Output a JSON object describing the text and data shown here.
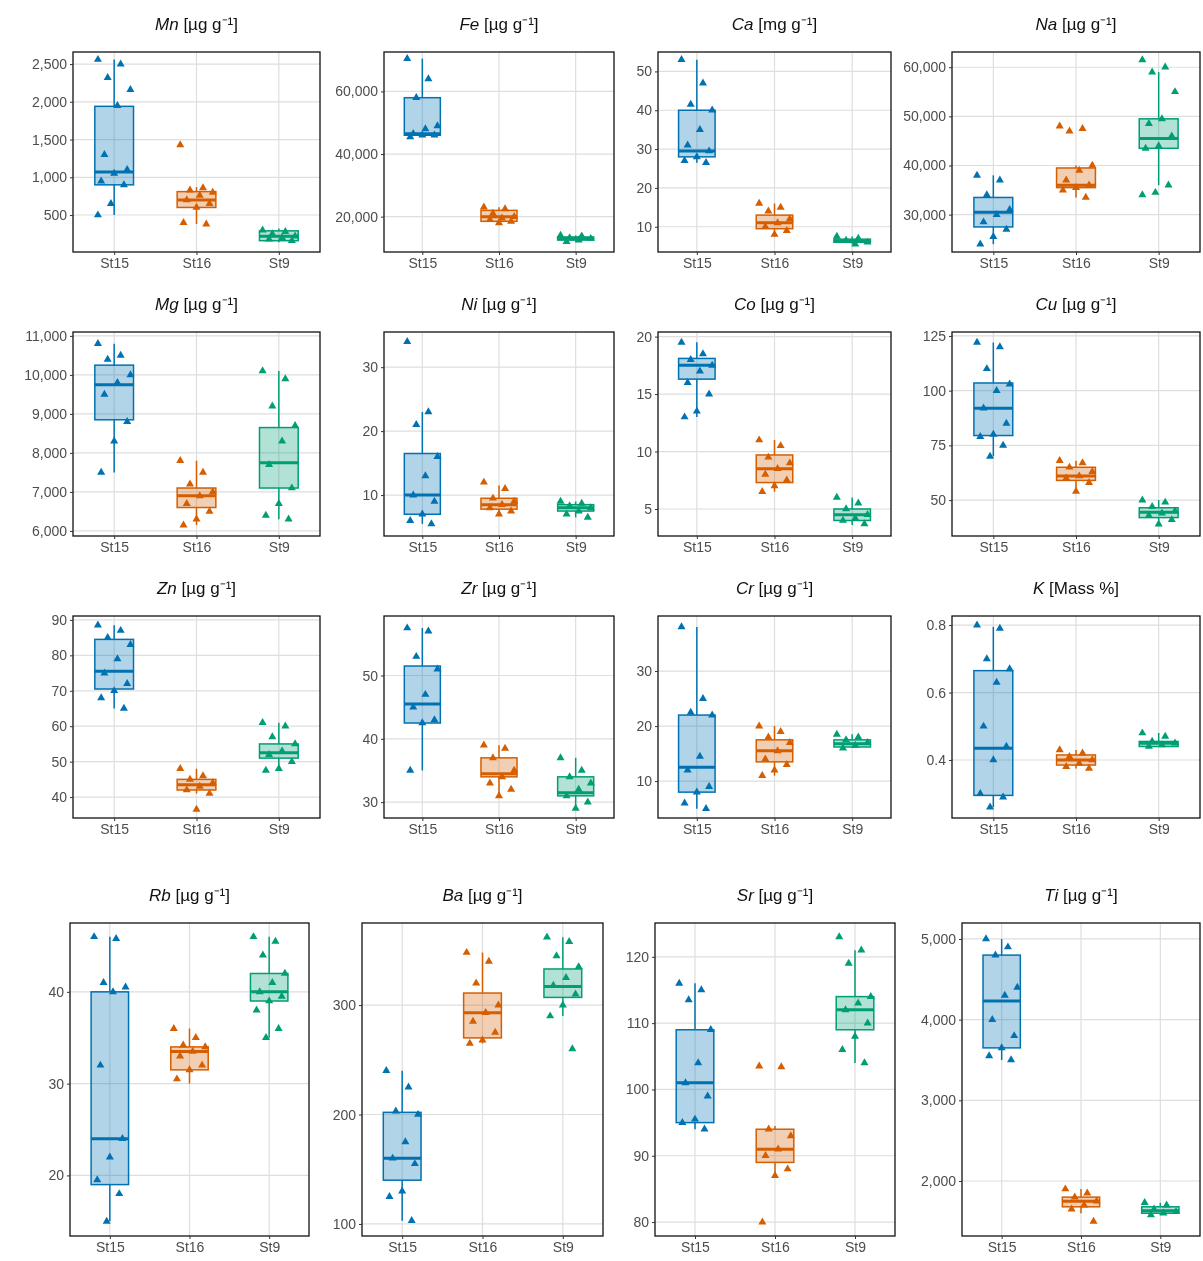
{
  "chart_data": [
    {
      "type": "box",
      "title": "Mn [µg g⁻¹]",
      "categories": [
        "St15",
        "St16",
        "St9"
      ],
      "colors": [
        "#0072b2",
        "#d55e00",
        "#009e73"
      ],
      "ylim": [
        10,
        2660
      ],
      "yticks": [
        500,
        {
          "value": 1000,
          "label": "1,000"
        },
        {
          "value": 1500,
          "label": "1,500"
        },
        {
          "value": 2000,
          "label": "2,000"
        },
        {
          "value": 2500,
          "label": "2,500"
        }
      ],
      "grid": true,
      "marker": "triangle",
      "boxes": [
        {
          "low": 500,
          "q1": 900,
          "median": 1070,
          "q3": 1940,
          "high": 2560
        },
        {
          "low": 380,
          "q1": 600,
          "median": 700,
          "q3": 810,
          "high": 870
        },
        {
          "low": 140,
          "q1": 160,
          "median": 220,
          "q3": 290,
          "high": 320
        }
      ],
      "series": [
        {
          "type": "scatter",
          "color": "#0072b2",
          "x": [
            "St15",
            "St15",
            "St15",
            "St15",
            "St15",
            "St15",
            "St15",
            "St15",
            "St15",
            "St15",
            "St15",
            "St15"
          ],
          "values": [
            2560,
            2500,
            2320,
            2160,
            1950,
            1300,
            1100,
            1050,
            950,
            900,
            650,
            500
          ]
        },
        {
          "type": "scatter",
          "color": "#d55e00",
          "x": [
            "St16",
            "St16",
            "St16",
            "St16",
            "St16",
            "St16",
            "St16",
            "St16",
            "St16",
            "St16"
          ],
          "values": [
            1430,
            860,
            830,
            800,
            760,
            700,
            650,
            600,
            400,
            380
          ]
        },
        {
          "type": "scatter",
          "color": "#009e73",
          "x": [
            "St9",
            "St9",
            "St9",
            "St9",
            "St9",
            "St9",
            "St9"
          ],
          "values": [
            300,
            280,
            250,
            220,
            200,
            180,
            160
          ]
        }
      ]
    },
    {
      "type": "box",
      "title": "Fe [µg g⁻¹]",
      "categories": [
        "St15",
        "St16",
        "St9"
      ],
      "colors": [
        "#0072b2",
        "#d55e00",
        "#009e73"
      ],
      "ylim": [
        8700,
        72600
      ],
      "yticks": [
        {
          "value": 20000,
          "label": "20,000"
        },
        {
          "value": 40000,
          "label": "40,000"
        },
        {
          "value": 60000,
          "label": "60,000"
        }
      ],
      "grid": true,
      "marker": "triangle",
      "boxes": [
        {
          "low": 45500,
          "q1": 46000,
          "median": 46500,
          "q3": 58000,
          "high": 70500
        },
        {
          "low": 18000,
          "q1": 18500,
          "median": 20000,
          "q3": 22000,
          "high": 23000
        },
        {
          "low": 12000,
          "q1": 12500,
          "median": 13000,
          "q3": 13500,
          "high": 14000
        }
      ],
      "series": [
        {
          "type": "scatter",
          "color": "#0072b2",
          "x": [
            "St15",
            "St15",
            "St15",
            "St15",
            "St15",
            "St15",
            "St15",
            "St15",
            "St15"
          ],
          "values": [
            70500,
            64000,
            58000,
            49000,
            48000,
            46500,
            46000,
            46000,
            45500
          ]
        },
        {
          "type": "scatter",
          "color": "#d55e00",
          "x": [
            "St16",
            "St16",
            "St16",
            "St16",
            "St16",
            "St16",
            "St16",
            "St16"
          ],
          "values": [
            23000,
            22500,
            21000,
            20000,
            19500,
            19000,
            18500,
            18000
          ]
        },
        {
          "type": "scatter",
          "color": "#009e73",
          "x": [
            "St9",
            "St9",
            "St9",
            "St9",
            "St9",
            "St9"
          ],
          "values": [
            14000,
            13800,
            13200,
            13000,
            12500,
            12000
          ]
        }
      ]
    },
    {
      "type": "box",
      "title": "Ca [mg g⁻¹]",
      "categories": [
        "St15",
        "St16",
        "St9"
      ],
      "colors": [
        "#0072b2",
        "#d55e00",
        "#009e73"
      ],
      "ylim": [
        3.5,
        55
      ],
      "yticks": [
        10,
        20,
        30,
        40,
        50
      ],
      "grid": true,
      "marker": "triangle",
      "boxes": [
        {
          "low": 26.5,
          "q1": 28,
          "median": 29.5,
          "q3": 40,
          "high": 53
        },
        {
          "low": 8,
          "q1": 9.5,
          "median": 11,
          "q3": 13,
          "high": 16
        },
        {
          "low": 5.5,
          "q1": 6,
          "median": 6.3,
          "q3": 6.8,
          "high": 7.5
        }
      ],
      "series": [
        {
          "type": "scatter",
          "color": "#0072b2",
          "x": [
            "St15",
            "St15",
            "St15",
            "St15",
            "St15",
            "St15",
            "St15",
            "St15",
            "St15",
            "St15"
          ],
          "values": [
            53,
            47,
            41.5,
            40,
            35,
            31,
            29.5,
            28,
            27,
            26.5
          ]
        },
        {
          "type": "scatter",
          "color": "#d55e00",
          "x": [
            "St16",
            "St16",
            "St16",
            "St16",
            "St16",
            "St16",
            "St16",
            "St16"
          ],
          "values": [
            16,
            15,
            14,
            12,
            11,
            10,
            9,
            8
          ]
        },
        {
          "type": "scatter",
          "color": "#009e73",
          "x": [
            "St9",
            "St9",
            "St9",
            "St9",
            "St9"
          ],
          "values": [
            7.5,
            7,
            6.5,
            6,
            5.5
          ]
        }
      ]
    },
    {
      "type": "box",
      "title": "Na [µg g⁻¹]",
      "categories": [
        "St15",
        "St16",
        "St9"
      ],
      "colors": [
        "#0072b2",
        "#d55e00",
        "#009e73"
      ],
      "ylim": [
        22400,
        63100
      ],
      "yticks": [
        {
          "value": 30000,
          "label": "30,000"
        },
        {
          "value": 40000,
          "label": "40,000"
        },
        {
          "value": 50000,
          "label": "50,000"
        },
        {
          "value": 60000,
          "label": "60,000"
        }
      ],
      "grid": true,
      "marker": "triangle",
      "boxes": [
        {
          "low": 24000,
          "q1": 27500,
          "median": 30500,
          "q3": 33500,
          "high": 38000
        },
        {
          "low": 33500,
          "q1": 35500,
          "median": 36000,
          "q3": 39500,
          "high": 40000
        },
        {
          "low": 36000,
          "q1": 43500,
          "median": 45500,
          "q3": 49500,
          "high": 59000
        }
      ],
      "series": [
        {
          "type": "scatter",
          "color": "#0072b2",
          "x": [
            "St15",
            "St15",
            "St15",
            "St15",
            "St15",
            "St15",
            "St15",
            "St15",
            "St15"
          ],
          "values": [
            38000,
            37000,
            34000,
            31000,
            30000,
            28500,
            27000,
            25500,
            24000
          ]
        },
        {
          "type": "scatter",
          "color": "#d55e00",
          "x": [
            "St16",
            "St16",
            "St16",
            "St16",
            "St16",
            "St16",
            "St16",
            "St16",
            "St16",
            "St16"
          ],
          "values": [
            48000,
            47500,
            47000,
            40000,
            39000,
            37000,
            36000,
            35500,
            35000,
            33500
          ]
        },
        {
          "type": "scatter",
          "color": "#009e73",
          "x": [
            "St9",
            "St9",
            "St9",
            "St9",
            "St9",
            "St9",
            "St9",
            "St9",
            "St9",
            "St9",
            "St9",
            "St9"
          ],
          "values": [
            61500,
            60000,
            59000,
            55000,
            49500,
            48500,
            46000,
            44000,
            43500,
            36000,
            34500,
            34000
          ]
        }
      ]
    },
    {
      "type": "box",
      "title": "Mg [µg g⁻¹]",
      "categories": [
        "St15",
        "St16",
        "St9"
      ],
      "colors": [
        "#0072b2",
        "#d55e00",
        "#009e73"
      ],
      "ylim": [
        5870,
        11100
      ],
      "yticks": [
        {
          "value": 6000,
          "label": "6,000"
        },
        {
          "value": 7000,
          "label": "7,000"
        },
        {
          "value": 8000,
          "label": "8,000"
        },
        {
          "value": 9000,
          "label": "9,000"
        },
        {
          "value": 10000,
          "label": "10,000"
        },
        {
          "value": 11000,
          "label": "11,000"
        }
      ],
      "grid": true,
      "marker": "triangle",
      "boxes": [
        {
          "low": 7500,
          "q1": 8850,
          "median": 9750,
          "q3": 10250,
          "high": 10800
        },
        {
          "low": 6150,
          "q1": 6600,
          "median": 6900,
          "q3": 7100,
          "high": 7800
        },
        {
          "low": 6300,
          "q1": 7100,
          "median": 7750,
          "q3": 8650,
          "high": 10100
        }
      ],
      "series": [
        {
          "type": "scatter",
          "color": "#0072b2",
          "x": [
            "St15",
            "St15",
            "St15",
            "St15",
            "St15",
            "St15",
            "St15",
            "St15",
            "St15"
          ],
          "values": [
            10800,
            10500,
            10400,
            10000,
            9800,
            9500,
            8800,
            8300,
            7500
          ]
        },
        {
          "type": "scatter",
          "color": "#d55e00",
          "x": [
            "St16",
            "St16",
            "St16",
            "St16",
            "St16",
            "St16",
            "St16",
            "St16",
            "St16"
          ],
          "values": [
            7800,
            7500,
            7200,
            7000,
            6900,
            6700,
            6500,
            6300,
            6150
          ]
        },
        {
          "type": "scatter",
          "color": "#009e73",
          "x": [
            "St9",
            "St9",
            "St9",
            "St9",
            "St9",
            "St9",
            "St9",
            "St9",
            "St9",
            "St9"
          ],
          "values": [
            10100,
            9900,
            9200,
            8700,
            8300,
            7700,
            7100,
            6700,
            6400,
            6300
          ]
        }
      ]
    },
    {
      "type": "box",
      "title": "Ni [µg g⁻¹]",
      "categories": [
        "St15",
        "St16",
        "St9"
      ],
      "colors": [
        "#0072b2",
        "#d55e00",
        "#009e73"
      ],
      "ylim": [
        3.6,
        35.5
      ],
      "yticks": [
        10,
        20,
        30
      ],
      "grid": true,
      "marker": "triangle",
      "boxes": [
        {
          "low": 5.5,
          "q1": 7,
          "median": 10,
          "q3": 16.5,
          "high": 23
        },
        {
          "low": 7,
          "q1": 7.8,
          "median": 8.5,
          "q3": 9.5,
          "high": 11.5
        },
        {
          "low": 6.5,
          "q1": 7.5,
          "median": 8,
          "q3": 8.5,
          "high": 9
        }
      ],
      "series": [
        {
          "type": "scatter",
          "color": "#0072b2",
          "x": [
            "St15",
            "St15",
            "St15",
            "St15",
            "St15",
            "St15",
            "St15",
            "St15",
            "St15",
            "St15"
          ],
          "values": [
            34,
            23,
            21,
            16,
            13,
            10,
            9,
            7,
            6,
            5.5
          ]
        },
        {
          "type": "scatter",
          "color": "#d55e00",
          "x": [
            "St16",
            "St16",
            "St16",
            "St16",
            "St16",
            "St16",
            "St16",
            "St16"
          ],
          "values": [
            12,
            11,
            9.5,
            9,
            8.5,
            8,
            7.5,
            7
          ]
        },
        {
          "type": "scatter",
          "color": "#009e73",
          "x": [
            "St9",
            "St9",
            "St9",
            "St9",
            "St9",
            "St9",
            "St9"
          ],
          "values": [
            9,
            8.7,
            8.3,
            8,
            7.5,
            7,
            6.5
          ]
        }
      ]
    },
    {
      "type": "box",
      "title": "Co [µg g⁻¹]",
      "categories": [
        "St15",
        "St16",
        "St9"
      ],
      "colors": [
        "#0072b2",
        "#d55e00",
        "#009e73"
      ],
      "ylim": [
        2.65,
        20.4
      ],
      "yticks": [
        5,
        10,
        15,
        20
      ],
      "grid": true,
      "marker": "triangle",
      "boxes": [
        {
          "low": 13,
          "q1": 16.3,
          "median": 17.5,
          "q3": 18.1,
          "high": 19.5
        },
        {
          "low": 6.5,
          "q1": 7.3,
          "median": 8.5,
          "q3": 9.7,
          "high": 11
        },
        {
          "low": 3.6,
          "q1": 4,
          "median": 4.5,
          "q3": 5,
          "high": 6
        }
      ],
      "series": [
        {
          "type": "scatter",
          "color": "#0072b2",
          "x": [
            "St15",
            "St15",
            "St15",
            "St15",
            "St15",
            "St15",
            "St15",
            "St15",
            "St15"
          ],
          "values": [
            19.5,
            18.5,
            18,
            17.5,
            17,
            16,
            15,
            13.5,
            13
          ]
        },
        {
          "type": "scatter",
          "color": "#d55e00",
          "x": [
            "St16",
            "St16",
            "St16",
            "St16",
            "St16",
            "St16",
            "St16",
            "St16",
            "St16"
          ],
          "values": [
            11,
            10.5,
            9.5,
            9,
            8.5,
            8,
            7.5,
            7,
            6.5
          ]
        },
        {
          "type": "scatter",
          "color": "#009e73",
          "x": [
            "St9",
            "St9",
            "St9",
            "St9",
            "St9",
            "St9",
            "St9"
          ],
          "values": [
            6,
            5.5,
            5,
            4.5,
            4.2,
            4,
            3.7
          ]
        }
      ]
    },
    {
      "type": "box",
      "title": "Cu [µg g⁻¹]",
      "categories": [
        "St15",
        "St16",
        "St9"
      ],
      "colors": [
        "#0072b2",
        "#d55e00",
        "#009e73"
      ],
      "ylim": [
        33.6,
        126.8
      ],
      "yticks": [
        50,
        75,
        100,
        125
      ],
      "grid": true,
      "marker": "triangle",
      "boxes": [
        {
          "low": 70,
          "q1": 79.5,
          "median": 92,
          "q3": 103.5,
          "high": 122
        },
        {
          "low": 54,
          "q1": 59,
          "median": 61,
          "q3": 65,
          "high": 68
        },
        {
          "low": 39,
          "q1": 42,
          "median": 44.5,
          "q3": 46.5,
          "high": 50
        }
      ],
      "series": [
        {
          "type": "scatter",
          "color": "#0072b2",
          "x": [
            "St15",
            "St15",
            "St15",
            "St15",
            "St15",
            "St15",
            "St15",
            "St15",
            "St15",
            "St15",
            "St15"
          ],
          "values": [
            122,
            120,
            110,
            103,
            100,
            92,
            85,
            80,
            79,
            75,
            70
          ]
        },
        {
          "type": "scatter",
          "color": "#d55e00",
          "x": [
            "St16",
            "St16",
            "St16",
            "St16",
            "St16",
            "St16",
            "St16",
            "St16"
          ],
          "values": [
            68,
            67,
            65,
            63,
            61,
            60,
            58,
            54
          ]
        },
        {
          "type": "scatter",
          "color": "#009e73",
          "x": [
            "St9",
            "St9",
            "St9",
            "St9",
            "St9",
            "St9",
            "St9",
            "St9"
          ],
          "values": [
            50,
            49,
            47,
            45,
            44,
            43,
            41,
            39
          ]
        }
      ]
    },
    {
      "type": "box",
      "title": "Zn [µg g⁻¹]",
      "categories": [
        "St15",
        "St16",
        "St9"
      ],
      "colors": [
        "#0072b2",
        "#d55e00",
        "#009e73"
      ],
      "ylim": [
        34.1,
        91.1
      ],
      "yticks": [
        40,
        50,
        60,
        70,
        80,
        90
      ],
      "grid": true,
      "marker": "triangle",
      "boxes": [
        {
          "low": 65,
          "q1": 70.5,
          "median": 75.5,
          "q3": 84.5,
          "high": 88.5
        },
        {
          "low": 41,
          "q1": 42,
          "median": 43.5,
          "q3": 45,
          "high": 48
        },
        {
          "low": 47.5,
          "q1": 51,
          "median": 52.5,
          "q3": 55,
          "high": 61
        }
      ],
      "series": [
        {
          "type": "scatter",
          "color": "#0072b2",
          "x": [
            "St15",
            "St15",
            "St15",
            "St15",
            "St15",
            "St15",
            "St15",
            "St15",
            "St15",
            "St15"
          ],
          "values": [
            88.5,
            87,
            85,
            83,
            79,
            75,
            72,
            70,
            68,
            65
          ]
        },
        {
          "type": "scatter",
          "color": "#d55e00",
          "x": [
            "St16",
            "St16",
            "St16",
            "St16",
            "St16",
            "St16",
            "St16",
            "St16"
          ],
          "values": [
            48,
            46,
            45,
            44,
            43,
            42,
            41,
            36.5
          ]
        },
        {
          "type": "scatter",
          "color": "#009e73",
          "x": [
            "St9",
            "St9",
            "St9",
            "St9",
            "St9",
            "St9",
            "St9",
            "St9",
            "St9"
          ],
          "values": [
            61,
            60,
            57,
            55,
            53,
            52,
            50,
            48,
            47.5
          ]
        }
      ]
    },
    {
      "type": "box",
      "title": "Zr [µg g⁻¹]",
      "categories": [
        "St15",
        "St16",
        "St9"
      ],
      "colors": [
        "#0072b2",
        "#d55e00",
        "#009e73"
      ],
      "ylim": [
        27.5,
        59.4
      ],
      "yticks": [
        30,
        40,
        50
      ],
      "grid": true,
      "marker": "triangle",
      "boxes": [
        {
          "low": 35,
          "q1": 42.5,
          "median": 45.5,
          "q3": 51.5,
          "high": 57.5
        },
        {
          "low": 31,
          "q1": 34,
          "median": 34.5,
          "q3": 37,
          "high": 39
        },
        {
          "low": 29,
          "q1": 31,
          "median": 31.5,
          "q3": 34,
          "high": 37
        }
      ],
      "series": [
        {
          "type": "scatter",
          "color": "#0072b2",
          "x": [
            "St15",
            "St15",
            "St15",
            "St15",
            "St15",
            "St15",
            "St15",
            "St15",
            "St15"
          ],
          "values": [
            57.5,
            57,
            53,
            51,
            47,
            45,
            43,
            42.5,
            35
          ]
        },
        {
          "type": "scatter",
          "color": "#d55e00",
          "x": [
            "St16",
            "St16",
            "St16",
            "St16",
            "St16",
            "St16",
            "St16",
            "St16"
          ],
          "values": [
            39,
            38.5,
            37,
            35,
            34,
            33,
            32,
            31
          ]
        },
        {
          "type": "scatter",
          "color": "#009e73",
          "x": [
            "St9",
            "St9",
            "St9",
            "St9",
            "St9",
            "St9",
            "St9",
            "St9"
          ],
          "values": [
            37,
            35,
            34,
            33,
            32,
            31,
            30,
            29
          ]
        }
      ]
    },
    {
      "type": "box",
      "title": "Cr [µg g⁻¹]",
      "categories": [
        "St15",
        "St16",
        "St9"
      ],
      "colors": [
        "#0072b2",
        "#d55e00",
        "#009e73"
      ],
      "ylim": [
        3.3,
        40
      ],
      "yticks": [
        10,
        20,
        30
      ],
      "grid": true,
      "marker": "triangle",
      "boxes": [
        {
          "low": 5,
          "q1": 8,
          "median": 12.5,
          "q3": 22,
          "high": 38
        },
        {
          "low": 11,
          "q1": 13.5,
          "median": 15.5,
          "q3": 17.5,
          "high": 20
        },
        {
          "low": 16,
          "q1": 16.2,
          "median": 16.8,
          "q3": 17.5,
          "high": 18.5
        }
      ],
      "series": [
        {
          "type": "scatter",
          "color": "#0072b2",
          "x": [
            "St15",
            "St15",
            "St15",
            "St15",
            "St15",
            "St15",
            "St15",
            "St15",
            "St15",
            "St15"
          ],
          "values": [
            38,
            25,
            22.5,
            22,
            14.5,
            12,
            9,
            8,
            6,
            5
          ]
        },
        {
          "type": "scatter",
          "color": "#d55e00",
          "x": [
            "St16",
            "St16",
            "St16",
            "St16",
            "St16",
            "St16",
            "St16",
            "St16",
            "St16"
          ],
          "values": [
            20,
            19,
            18,
            17,
            15.5,
            14,
            13,
            12,
            11
          ]
        },
        {
          "type": "scatter",
          "color": "#009e73",
          "x": [
            "St9",
            "St9",
            "St9",
            "St9",
            "St9",
            "St9"
          ],
          "values": [
            18.5,
            18,
            17.5,
            17,
            16.5,
            16
          ]
        }
      ]
    },
    {
      "type": "box",
      "title": "K  [Mass %]",
      "categories": [
        "St15",
        "St16",
        "St9"
      ],
      "colors": [
        "#0072b2",
        "#d55e00",
        "#009e73"
      ],
      "ylim": [
        0.228,
        0.827
      ],
      "yticks": [
        0.4,
        0.6,
        0.8
      ],
      "grid": true,
      "marker": "triangle",
      "boxes": [
        {
          "low": 0.26,
          "q1": 0.295,
          "median": 0.435,
          "q3": 0.665,
          "high": 0.795
        },
        {
          "low": 0.375,
          "q1": 0.385,
          "median": 0.4,
          "q3": 0.415,
          "high": 0.43
        },
        {
          "low": 0.44,
          "q1": 0.44,
          "median": 0.45,
          "q3": 0.455,
          "high": 0.48
        }
      ],
      "series": [
        {
          "type": "scatter",
          "color": "#0072b2",
          "x": [
            "St15",
            "St15",
            "St15",
            "St15",
            "St15",
            "St15",
            "St15",
            "St15",
            "St15",
            "St15",
            "St15"
          ],
          "values": [
            0.8,
            0.79,
            0.7,
            0.67,
            0.63,
            0.5,
            0.44,
            0.4,
            0.3,
            0.29,
            0.26
          ]
        },
        {
          "type": "scatter",
          "color": "#d55e00",
          "x": [
            "St16",
            "St16",
            "St16",
            "St16",
            "St16",
            "St16",
            "St16"
          ],
          "values": [
            0.43,
            0.42,
            0.41,
            0.4,
            0.39,
            0.38,
            0.375
          ]
        },
        {
          "type": "scatter",
          "color": "#009e73",
          "x": [
            "St9",
            "St9",
            "St9",
            "St9",
            "St9",
            "St9"
          ],
          "values": [
            0.48,
            0.47,
            0.455,
            0.45,
            0.445,
            0.44
          ]
        }
      ]
    },
    {
      "type": "box",
      "title": "Rb [µg g⁻¹]",
      "categories": [
        "St15",
        "St16",
        "St9"
      ],
      "colors": [
        "#0072b2",
        "#d55e00",
        "#009e73"
      ],
      "ylim": [
        13.4,
        47.5
      ],
      "yticks": [
        20,
        30,
        40
      ],
      "grid": true,
      "marker": "triangle",
      "boxes": [
        {
          "low": 15,
          "q1": 19,
          "median": 24,
          "q3": 40,
          "high": 46
        },
        {
          "low": 30,
          "q1": 31.5,
          "median": 33.5,
          "q3": 34,
          "high": 36
        },
        {
          "low": 35,
          "q1": 39,
          "median": 40,
          "q3": 42,
          "high": 46
        }
      ],
      "series": [
        {
          "type": "scatter",
          "color": "#0072b2",
          "x": [
            "St15",
            "St15",
            "St15",
            "St15",
            "St15",
            "St15",
            "St15",
            "St15",
            "St15",
            "St15",
            "St15"
          ],
          "values": [
            46,
            45.8,
            41,
            40.5,
            40,
            32,
            24,
            22,
            19.5,
            18,
            15
          ]
        },
        {
          "type": "scatter",
          "color": "#d55e00",
          "x": [
            "St16",
            "St16",
            "St16",
            "St16",
            "St16",
            "St16",
            "St16",
            "St16",
            "St16"
          ],
          "values": [
            36,
            35,
            34.2,
            34,
            33.5,
            33,
            32,
            31.5,
            30.5
          ]
        },
        {
          "type": "scatter",
          "color": "#009e73",
          "x": [
            "St9",
            "St9",
            "St9",
            "St9",
            "St9",
            "St9",
            "St9",
            "St9",
            "St9",
            "St9",
            "St9"
          ],
          "values": [
            46,
            45.5,
            44,
            42,
            41,
            40,
            39.5,
            39,
            38,
            36,
            35
          ]
        }
      ]
    },
    {
      "type": "box",
      "title": "Ba [µg g⁻¹]",
      "categories": [
        "St15",
        "St16",
        "St9"
      ],
      "colors": [
        "#0072b2",
        "#d55e00",
        "#009e73"
      ],
      "ylim": [
        89,
        375
      ],
      "yticks": [
        100,
        200,
        300
      ],
      "grid": true,
      "marker": "triangle",
      "boxes": [
        {
          "low": 103,
          "q1": 140,
          "median": 160,
          "q3": 202,
          "high": 240
        },
        {
          "low": 265,
          "q1": 270,
          "median": 293,
          "q3": 311,
          "high": 348
        },
        {
          "low": 290,
          "q1": 307,
          "median": 317,
          "q3": 333,
          "high": 362
        }
      ],
      "series": [
        {
          "type": "scatter",
          "color": "#0072b2",
          "x": [
            "St15",
            "St15",
            "St15",
            "St15",
            "St15",
            "St15",
            "St15",
            "St15",
            "St15",
            "St15"
          ],
          "values": [
            240,
            225,
            203,
            200,
            175,
            160,
            155,
            130,
            125,
            103
          ]
        },
        {
          "type": "scatter",
          "color": "#d55e00",
          "x": [
            "St16",
            "St16",
            "St16",
            "St16",
            "St16",
            "St16",
            "St16",
            "St16",
            "St16"
          ],
          "values": [
            348,
            340,
            320,
            300,
            293,
            285,
            275,
            268,
            265
          ]
        },
        {
          "type": "scatter",
          "color": "#009e73",
          "x": [
            "St9",
            "St9",
            "St9",
            "St9",
            "St9",
            "St9",
            "St9",
            "St9",
            "St9",
            "St9"
          ],
          "values": [
            362,
            358,
            345,
            335,
            325,
            318,
            310,
            300,
            290,
            260
          ]
        }
      ]
    },
    {
      "type": "box",
      "title": "Sr [µg g⁻¹]",
      "categories": [
        "St15",
        "St16",
        "St9"
      ],
      "colors": [
        "#0072b2",
        "#d55e00",
        "#009e73"
      ],
      "ylim": [
        77.9,
        125.1
      ],
      "yticks": [
        80,
        90,
        100,
        110,
        120
      ],
      "grid": true,
      "marker": "triangle",
      "boxes": [
        {
          "low": 94,
          "q1": 95,
          "median": 101,
          "q3": 109,
          "high": 116
        },
        {
          "low": 87,
          "q1": 89,
          "median": 91,
          "q3": 94,
          "high": 94.5
        },
        {
          "low": 104,
          "q1": 109,
          "median": 112,
          "q3": 114,
          "high": 121
        }
      ],
      "series": [
        {
          "type": "scatter",
          "color": "#0072b2",
          "x": [
            "St15",
            "St15",
            "St15",
            "St15",
            "St15",
            "St15",
            "St15",
            "St15",
            "St15",
            "St15"
          ],
          "values": [
            116,
            115,
            113.5,
            109,
            104,
            101,
            99,
            95.5,
            95,
            94
          ]
        },
        {
          "type": "scatter",
          "color": "#d55e00",
          "x": [
            "St16",
            "St16",
            "St16",
            "St16",
            "St16",
            "St16",
            "St16",
            "St16",
            "St16"
          ],
          "values": [
            103.5,
            103.4,
            94,
            93,
            91,
            90,
            88,
            87,
            80
          ]
        },
        {
          "type": "scatter",
          "color": "#009e73",
          "x": [
            "St9",
            "St9",
            "St9",
            "St9",
            "St9",
            "St9",
            "St9",
            "St9",
            "St9",
            "St9"
          ],
          "values": [
            123,
            121,
            119,
            114,
            113,
            112,
            110,
            108,
            106,
            104
          ]
        }
      ]
    },
    {
      "type": "box",
      "title": "Ti [µg g⁻¹]",
      "categories": [
        "St15",
        "St16",
        "St9"
      ],
      "colors": [
        "#0072b2",
        "#d55e00",
        "#009e73"
      ],
      "ylim": [
        1318,
        5198
      ],
      "yticks": [
        {
          "value": 2000,
          "label": "2,000"
        },
        {
          "value": 3000,
          "label": "3,000"
        },
        {
          "value": 4000,
          "label": "4,000"
        },
        {
          "value": 5000,
          "label": "5,000"
        }
      ],
      "grid": true,
      "marker": "triangle",
      "boxes": [
        {
          "low": 3500,
          "q1": 3650,
          "median": 4230,
          "q3": 4800,
          "high": 5000
        },
        {
          "low": 1600,
          "q1": 1680,
          "median": 1750,
          "q3": 1800,
          "high": 1900
        },
        {
          "low": 1580,
          "q1": 1600,
          "median": 1630,
          "q3": 1680,
          "high": 1730
        }
      ],
      "series": [
        {
          "type": "scatter",
          "color": "#0072b2",
          "x": [
            "St15",
            "St15",
            "St15",
            "St15",
            "St15",
            "St15",
            "St15",
            "St15",
            "St15",
            "St15"
          ],
          "values": [
            5000,
            4900,
            4800,
            4400,
            4300,
            4000,
            3800,
            3650,
            3550,
            3500
          ]
        },
        {
          "type": "scatter",
          "color": "#d55e00",
          "x": [
            "St16",
            "St16",
            "St16",
            "St16",
            "St16",
            "St16",
            "St16"
          ],
          "values": [
            1900,
            1850,
            1800,
            1750,
            1700,
            1650,
            1500
          ]
        },
        {
          "type": "scatter",
          "color": "#009e73",
          "x": [
            "St9",
            "St9",
            "St9",
            "St9",
            "St9",
            "St9"
          ],
          "values": [
            1730,
            1700,
            1650,
            1620,
            1600,
            1580
          ]
        }
      ]
    }
  ]
}
